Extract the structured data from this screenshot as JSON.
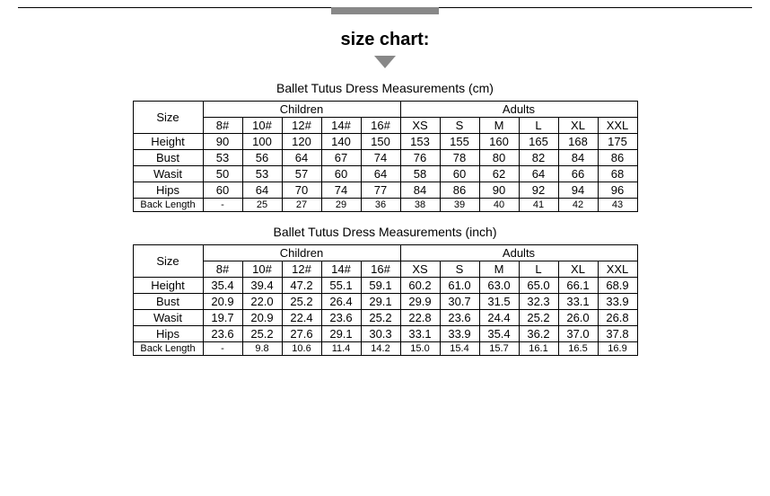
{
  "heading": "size chart:",
  "size_label": "Size",
  "group_children": "Children",
  "group_adults": "Adults",
  "size_cols": [
    "8#",
    "10#",
    "12#",
    "14#",
    "16#",
    "XS",
    "S",
    "M",
    "L",
    "XL",
    "XXL"
  ],
  "row_labels": [
    "Height",
    "Bust",
    "Wasit",
    "Hips",
    "Back Length"
  ],
  "tables": [
    {
      "title": "Ballet Tutus Dress Measurements  (cm)",
      "rows": [
        [
          "90",
          "100",
          "120",
          "140",
          "150",
          "153",
          "155",
          "160",
          "165",
          "168",
          "175"
        ],
        [
          "53",
          "56",
          "64",
          "67",
          "74",
          "76",
          "78",
          "80",
          "82",
          "84",
          "86"
        ],
        [
          "50",
          "53",
          "57",
          "60",
          "64",
          "58",
          "60",
          "62",
          "64",
          "66",
          "68"
        ],
        [
          "60",
          "64",
          "70",
          "74",
          "77",
          "84",
          "86",
          "90",
          "92",
          "94",
          "96"
        ],
        [
          "-",
          "25",
          "27",
          "29",
          "36",
          "38",
          "39",
          "40",
          "41",
          "42",
          "43"
        ]
      ]
    },
    {
      "title": "Ballet Tutus Dress Measurements  (inch)",
      "rows": [
        [
          "35.4",
          "39.4",
          "47.2",
          "55.1",
          "59.1",
          "60.2",
          "61.0",
          "63.0",
          "65.0",
          "66.1",
          "68.9"
        ],
        [
          "20.9",
          "22.0",
          "25.2",
          "26.4",
          "29.1",
          "29.9",
          "30.7",
          "31.5",
          "32.3",
          "33.1",
          "33.9"
        ],
        [
          "19.7",
          "20.9",
          "22.4",
          "23.6",
          "25.2",
          "22.8",
          "23.6",
          "24.4",
          "25.2",
          "26.0",
          "26.8"
        ],
        [
          "23.6",
          "25.2",
          "27.6",
          "29.1",
          "30.3",
          "33.1",
          "33.9",
          "35.4",
          "36.2",
          "37.0",
          "37.8"
        ],
        [
          "-",
          "9.8",
          "10.6",
          "11.4",
          "14.2",
          "15.0",
          "15.4",
          "15.7",
          "16.1",
          "16.5",
          "16.9"
        ]
      ]
    }
  ]
}
